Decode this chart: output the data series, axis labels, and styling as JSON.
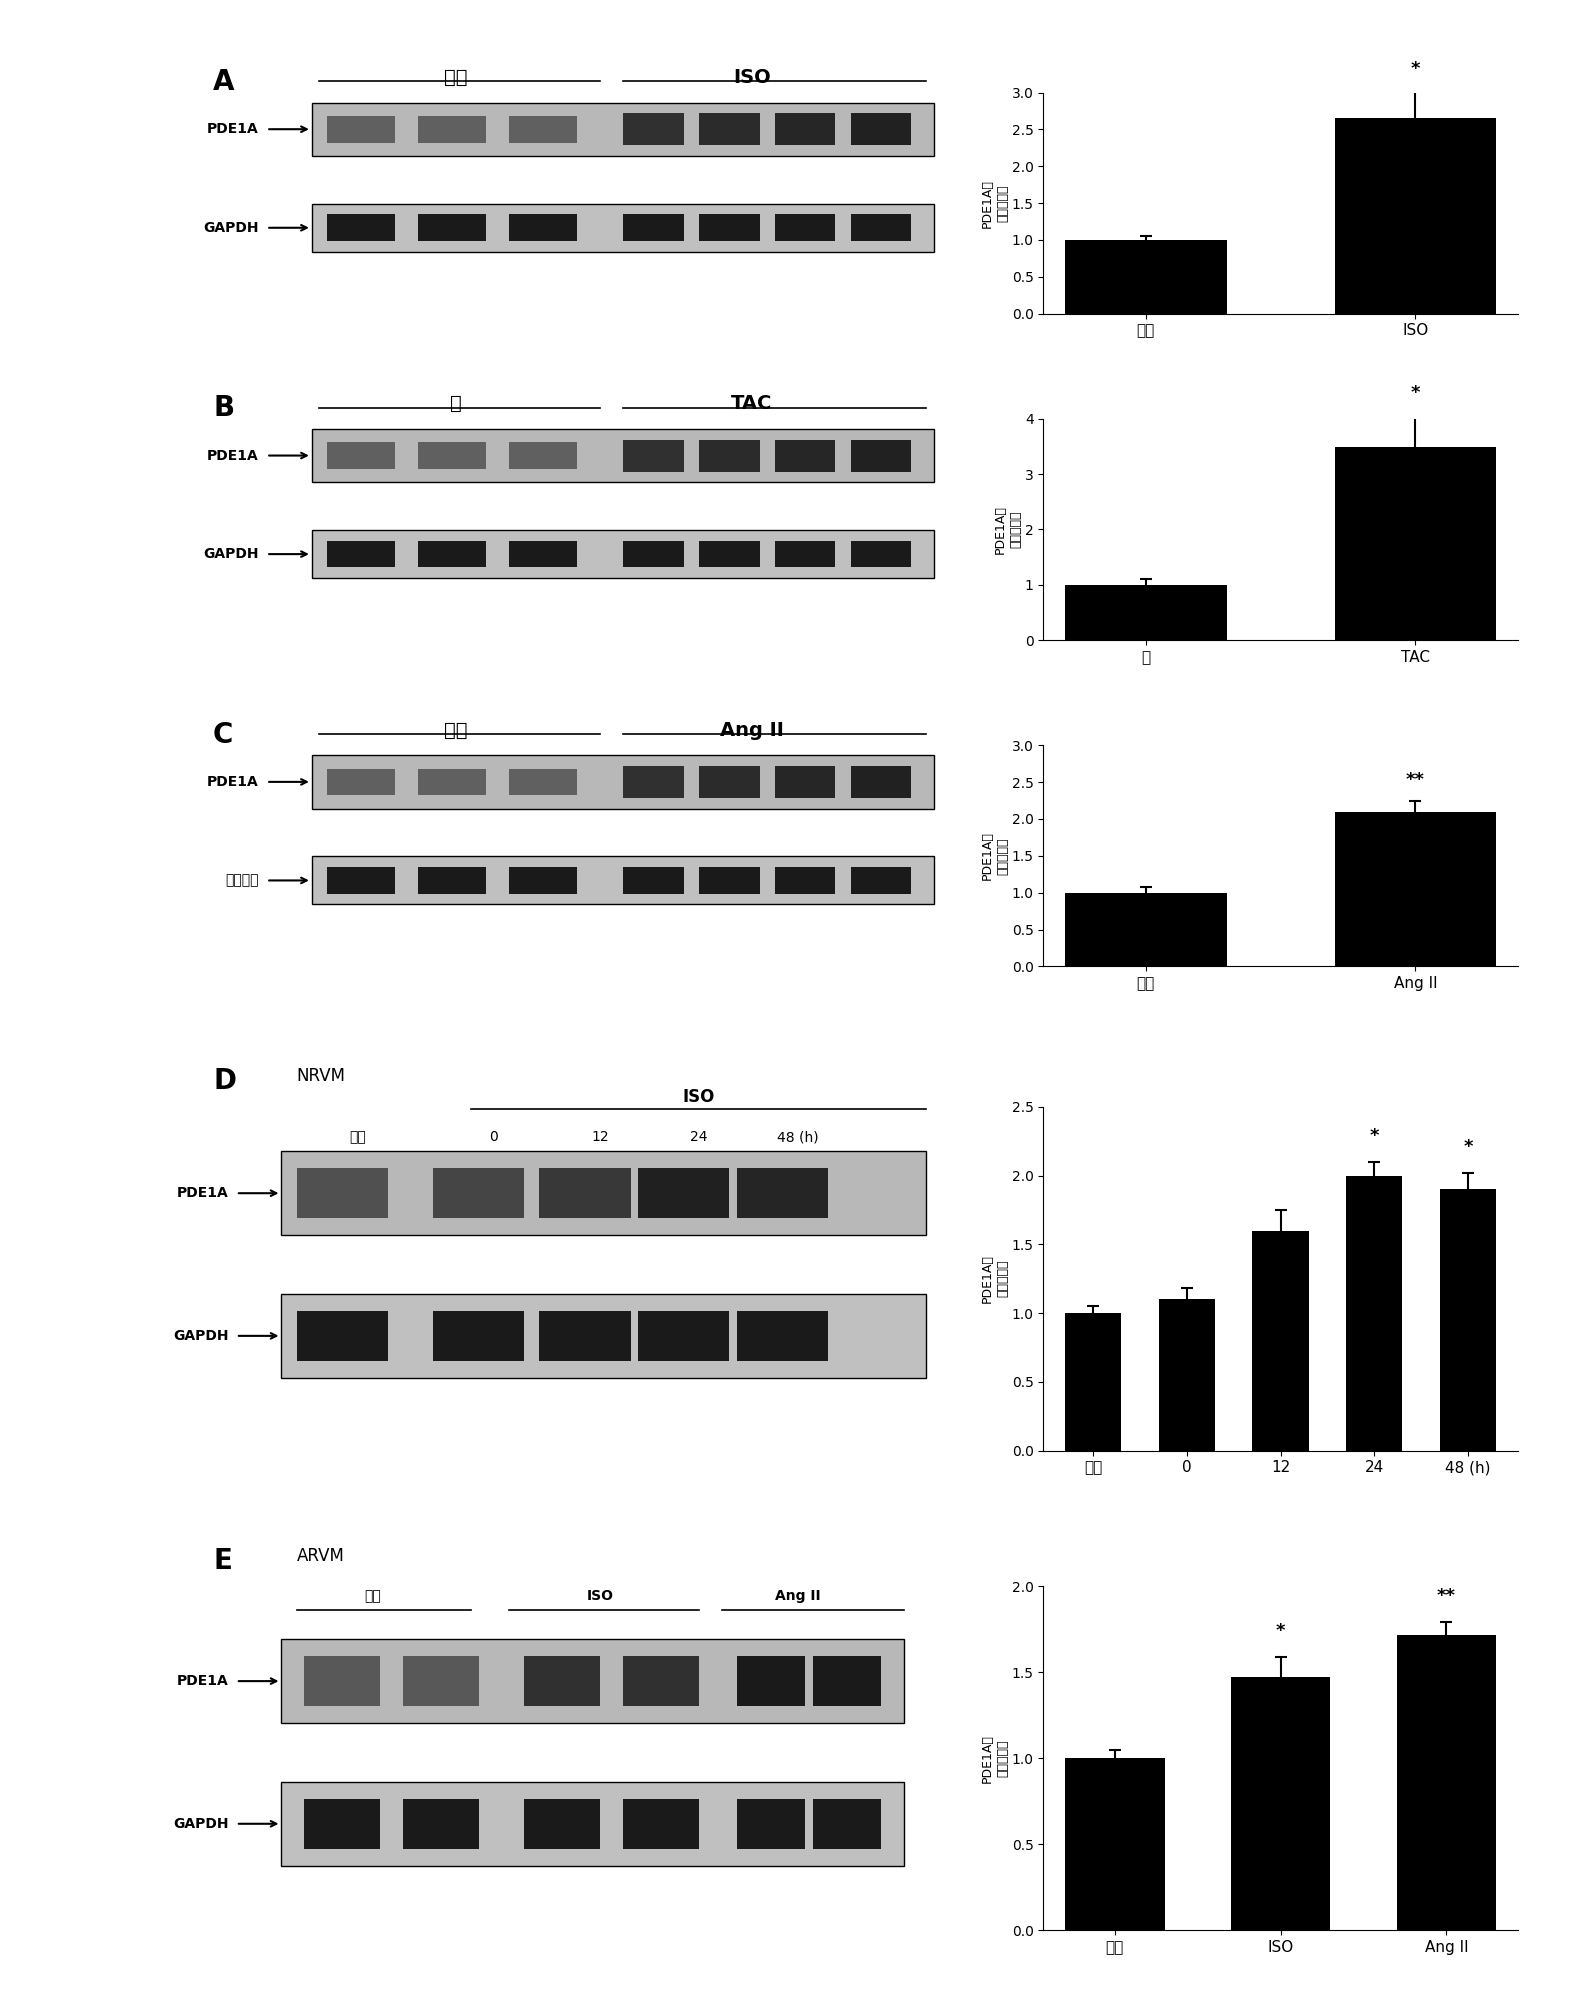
{
  "panel_A": {
    "bar_labels": [
      "溶媒",
      "ISO"
    ],
    "bar_values": [
      1.0,
      2.65
    ],
    "bar_errors": [
      0.05,
      0.4
    ],
    "ylim": [
      0,
      3.0
    ],
    "yticks": [
      0,
      0.5,
      1.0,
      1.5,
      2.0,
      2.5,
      3.0
    ],
    "ylabel": "PDE1A（倍数变化）",
    "significance": [
      "",
      "*"
    ],
    "blot_label1": "溶媒",
    "blot_label2": "ISO",
    "row1_label": "PDE1A",
    "row2_label": "GAPDH",
    "panel_letter": "A",
    "xlabel_below": "溶媒",
    "n_lanes_g1": 3,
    "n_lanes_g2": 4
  },
  "panel_B": {
    "bar_labels": [
      "假",
      "TAC"
    ],
    "bar_values": [
      1.0,
      3.5
    ],
    "bar_errors": [
      0.1,
      0.6
    ],
    "ylim": [
      0,
      4.0
    ],
    "yticks": [
      0,
      1.0,
      2.0,
      3.0,
      4.0
    ],
    "ylabel": "PDE1A（倍数变化）",
    "significance": [
      "",
      "*"
    ],
    "blot_label1": "假",
    "blot_label2": "TAC",
    "row1_label": "PDE1A",
    "row2_label": "GAPDH",
    "panel_letter": "B",
    "xlabel_below": "假",
    "n_lanes_g1": 3,
    "n_lanes_g2": 4
  },
  "panel_C": {
    "bar_labels": [
      "溶媒",
      "Ang II"
    ],
    "bar_values": [
      1.0,
      2.1
    ],
    "bar_errors": [
      0.08,
      0.15
    ],
    "ylim": [
      0,
      3.0
    ],
    "yticks": [
      0,
      0.5,
      1.0,
      1.5,
      2.0,
      2.5,
      3.0
    ],
    "ylabel": "PDE1A（倍数变化）",
    "significance": [
      "",
      "**"
    ],
    "blot_label1": "溶媒",
    "blot_label2": "Ang II",
    "row1_label": "PDE1A",
    "row2_label": "微管蛋白",
    "panel_letter": "C",
    "xlabel_below": "溶媒",
    "n_lanes_g1": 3,
    "n_lanes_g2": 4
  },
  "panel_D": {
    "bar_labels": [
      "对照",
      "0",
      "12",
      "24",
      "48 (h)"
    ],
    "bar_values": [
      1.0,
      1.1,
      1.6,
      2.0,
      1.9
    ],
    "bar_errors": [
      0.05,
      0.08,
      0.15,
      0.1,
      0.12
    ],
    "ylim": [
      0,
      2.5
    ],
    "yticks": [
      0,
      0.5,
      1.0,
      1.5,
      2.0,
      2.5
    ],
    "ylabel": "PDE1A（倍数变化）",
    "significance": [
      "",
      "",
      "",
      "*",
      "*"
    ],
    "blot_label_ctrl": "对照",
    "blot_label_iso": "ISO",
    "row1_label": "PDE1A",
    "row2_label": "GAPDH",
    "panel_letter": "D",
    "panel_sublabel": "NRVM",
    "n_lanes_ctrl": 1,
    "n_lanes_iso": 4,
    "time_labels": [
      "0",
      "12",
      "24",
      "48 (h)"
    ]
  },
  "panel_E": {
    "bar_labels": [
      "对照",
      "ISO",
      "Ang II"
    ],
    "bar_values": [
      1.0,
      1.47,
      1.72
    ],
    "bar_errors": [
      0.05,
      0.12,
      0.07
    ],
    "ylim": [
      0,
      2.0
    ],
    "yticks": [
      0,
      0.5,
      1.0,
      1.5,
      2.0
    ],
    "ylabel": "PDE1A（倍数变化）",
    "significance": [
      "",
      "*",
      "**"
    ],
    "blot_label_ctrl": "对照",
    "blot_label_iso": "ISO",
    "blot_label_ang": "Ang II",
    "row1_label": "PDE1A",
    "row2_label": "GAPDH",
    "panel_letter": "E",
    "panel_sublabel": "ARVM",
    "n_lanes_ctrl": 2,
    "n_lanes_iso": 2,
    "n_lanes_ang": 2
  },
  "bar_color": "#000000",
  "blot_bg_light": "#c8c8c8",
  "blot_bg_medium": "#b0b0b0",
  "band_dark": "#1a1a1a",
  "band_medium": "#555555",
  "band_light": "#909090"
}
